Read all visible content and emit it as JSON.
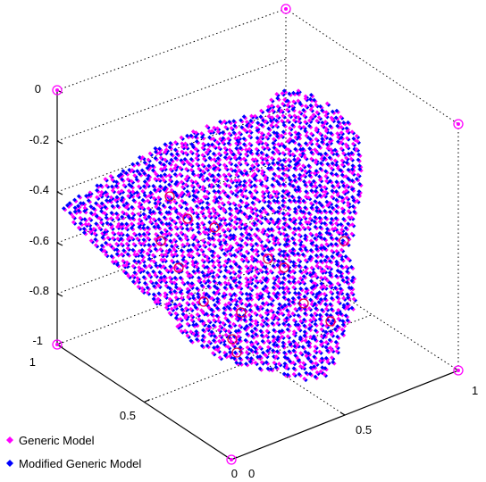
{
  "chart_data": {
    "type": "scatter",
    "projection": "3d",
    "title": "",
    "xlabel": "",
    "ylabel": "",
    "zlabel": "",
    "xlim": [
      0,
      1
    ],
    "ylim": [
      0,
      1
    ],
    "zlim": [
      -1,
      0
    ],
    "grid": true,
    "legend_position": "bottom-left",
    "x_ticks": [
      "0",
      "0.5",
      "1"
    ],
    "y_ticks": [
      "0",
      "0.5",
      "1"
    ],
    "z_ticks": [
      "0",
      "-0.2",
      "-0.4",
      "-0.6",
      "-0.8",
      "-1"
    ],
    "series": [
      {
        "name": "Generic Model",
        "color": "#ff00ff",
        "marker": "diamond"
      },
      {
        "name": "Modified Generic Model",
        "color": "#0000ff",
        "marker": "diamond"
      }
    ],
    "landmarks": {
      "color": "#ff00ff",
      "marker": "circle"
    },
    "box_corner_markers": {
      "color": "#ff00ff",
      "marker": "circle"
    }
  }
}
